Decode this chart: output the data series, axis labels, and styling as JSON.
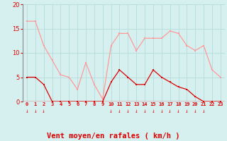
{
  "hours": [
    0,
    1,
    2,
    3,
    4,
    5,
    6,
    7,
    8,
    9,
    10,
    11,
    12,
    13,
    14,
    15,
    16,
    17,
    18,
    19,
    20,
    21,
    22,
    23
  ],
  "wind_avg": [
    5,
    5,
    3.5,
    0,
    0,
    0,
    0,
    0,
    0,
    0,
    4,
    6.5,
    5,
    3.5,
    3.5,
    6.5,
    5,
    4,
    3,
    2.5,
    1,
    0,
    0,
    0
  ],
  "wind_gust": [
    16.5,
    16.5,
    11.5,
    8.5,
    5.5,
    5,
    2.5,
    8,
    3.5,
    0.5,
    11.5,
    14,
    14,
    10.5,
    13,
    13,
    13,
    14.5,
    14,
    11.5,
    10.5,
    11.5,
    6.5,
    5
  ],
  "arrows_at": [
    0,
    1,
    2,
    10,
    11,
    12,
    13,
    14,
    15,
    16,
    17,
    18,
    19,
    20,
    21
  ],
  "bg_color": "#d6f0f0",
  "grid_color": "#b8dede",
  "line_avg_color": "#dd0000",
  "line_gust_color": "#ff9999",
  "xlabel": "Vent moyen/en rafales ( km/h )",
  "xlabel_color": "#dd0000",
  "tick_color": "#dd0000",
  "ylim": [
    0,
    20
  ],
  "yticks": [
    0,
    5,
    10,
    15,
    20
  ],
  "arrow_color": "#dd0000",
  "bottom_line_color": "#dd0000"
}
